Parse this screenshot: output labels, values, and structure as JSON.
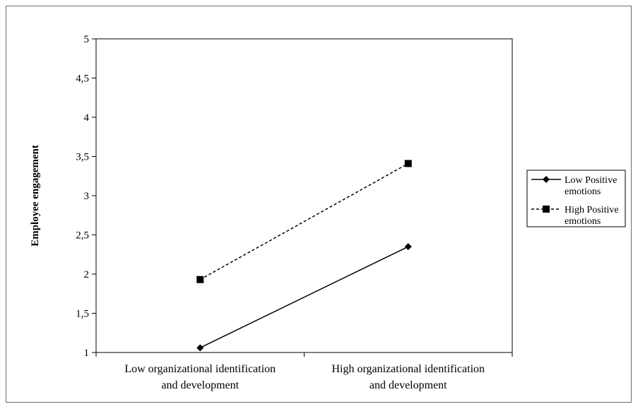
{
  "chart_data": {
    "type": "line",
    "title": "",
    "xlabel": "",
    "ylabel": "Employee engagement",
    "categories": [
      [
        "Low organizational identification",
        "and development"
      ],
      [
        "High organizational identification",
        "and development"
      ]
    ],
    "ylim": [
      1,
      5
    ],
    "yticks": [
      "1",
      "1,5",
      "2",
      "2,5",
      "3",
      "3,5",
      "4",
      "4,5",
      "5"
    ],
    "ytick_values": [
      1,
      1.5,
      2,
      2.5,
      3,
      3.5,
      4,
      4.5,
      5
    ],
    "grid": false,
    "legend_position": "right",
    "series": [
      {
        "name": [
          "Low Positive",
          "emotions"
        ],
        "values": [
          1.06,
          2.35
        ],
        "line_style": "solid",
        "marker": "diamond",
        "color": "#000000"
      },
      {
        "name": [
          "High Positive",
          "emotions"
        ],
        "values": [
          1.93,
          3.41
        ],
        "line_style": "dashed",
        "marker": "square",
        "color": "#000000"
      }
    ]
  }
}
